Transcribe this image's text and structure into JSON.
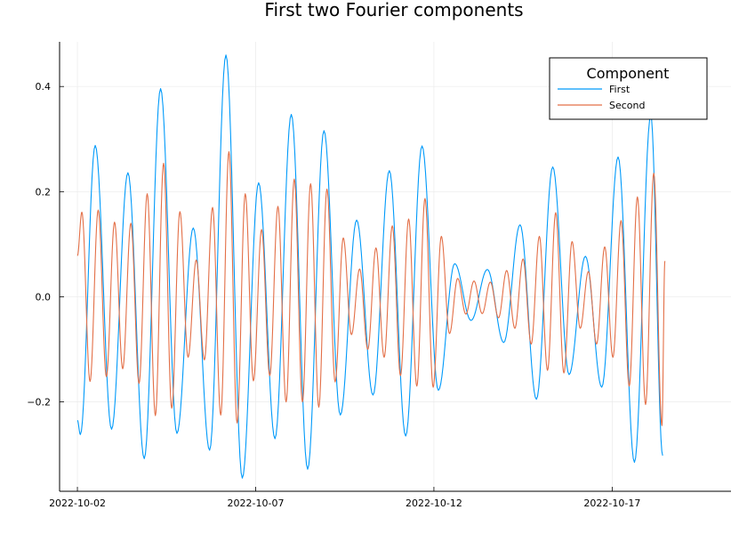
{
  "chart_data": {
    "type": "line",
    "title": "First two Fourier components",
    "xlabel": "",
    "ylabel": "",
    "x_start": "2022-10-02",
    "x_end": "2022-10-20",
    "xlim": [
      "2022-10-01T12:00",
      "2022-10-20T08:00"
    ],
    "ylim": [
      -0.37,
      0.485
    ],
    "x_ticks": [
      "2022-10-02",
      "2022-10-07",
      "2022-10-12",
      "2022-10-17"
    ],
    "y_ticks": [
      -0.2,
      0.0,
      0.2,
      0.4
    ],
    "y_tick_labels": [
      "−0.2",
      "0.0",
      "0.2",
      "0.4"
    ],
    "grid": true,
    "legend": {
      "title": "Component",
      "position": "top-right"
    },
    "series": [
      {
        "name": "First",
        "color": "#009AFA",
        "points": [
          [
            "2022-10-02T00:00",
            -0.235
          ],
          [
            "2022-10-02T02:00",
            -0.262
          ],
          [
            "2022-10-02T12:00",
            0.288
          ],
          [
            "2022-10-02T23:00",
            -0.252
          ],
          [
            "2022-10-03T10:00",
            0.236
          ],
          [
            "2022-10-03T21:00",
            -0.308
          ],
          [
            "2022-10-04T08:00",
            0.396
          ],
          [
            "2022-10-04T19:00",
            -0.26
          ],
          [
            "2022-10-05T06:00",
            0.131
          ],
          [
            "2022-10-05T17:00",
            -0.292
          ],
          [
            "2022-10-06T04:00",
            0.46
          ],
          [
            "2022-10-06T15:00",
            -0.345
          ],
          [
            "2022-10-07T02:00",
            0.217
          ],
          [
            "2022-10-07T13:00",
            -0.27
          ],
          [
            "2022-10-08T00:00",
            0.347
          ],
          [
            "2022-10-08T11:00",
            -0.328
          ],
          [
            "2022-10-08T22:00",
            0.316
          ],
          [
            "2022-10-09T09:00",
            -0.225
          ],
          [
            "2022-10-09T20:00",
            0.146
          ],
          [
            "2022-10-10T07:00",
            -0.187
          ],
          [
            "2022-10-10T18:00",
            0.24
          ],
          [
            "2022-10-11T05:00",
            -0.265
          ],
          [
            "2022-10-11T16:00",
            0.287
          ],
          [
            "2022-10-12T03:00",
            -0.178
          ],
          [
            "2022-10-12T14:00",
            0.063
          ],
          [
            "2022-10-13T01:00",
            -0.045
          ],
          [
            "2022-10-13T12:00",
            0.052
          ],
          [
            "2022-10-13T23:00",
            -0.087
          ],
          [
            "2022-10-14T10:00",
            0.137
          ],
          [
            "2022-10-14T21:00",
            -0.195
          ],
          [
            "2022-10-15T08:00",
            0.247
          ],
          [
            "2022-10-15T19:00",
            -0.148
          ],
          [
            "2022-10-16T06:00",
            0.077
          ],
          [
            "2022-10-16T17:00",
            -0.172
          ],
          [
            "2022-10-17T04:00",
            0.266
          ],
          [
            "2022-10-17T15:00",
            -0.315
          ],
          [
            "2022-10-18T02:00",
            0.345
          ],
          [
            "2022-10-18T10:00",
            -0.302
          ]
        ]
      },
      {
        "name": "Second",
        "color": "#E36F47",
        "points": [
          [
            "2022-10-02T00:00",
            0.078
          ],
          [
            "2022-10-02T03:00",
            0.161
          ],
          [
            "2022-10-02T08:30",
            -0.161
          ],
          [
            "2022-10-02T14:00",
            0.165
          ],
          [
            "2022-10-02T19:30",
            -0.152
          ],
          [
            "2022-10-03T01:00",
            0.142
          ],
          [
            "2022-10-03T06:30",
            -0.137
          ],
          [
            "2022-10-03T12:00",
            0.14
          ],
          [
            "2022-10-03T17:30",
            -0.165
          ],
          [
            "2022-10-03T23:00",
            0.196
          ],
          [
            "2022-10-04T04:30",
            -0.226
          ],
          [
            "2022-10-04T10:00",
            0.254
          ],
          [
            "2022-10-04T15:30",
            -0.212
          ],
          [
            "2022-10-04T21:00",
            0.162
          ],
          [
            "2022-10-05T02:30",
            -0.115
          ],
          [
            "2022-10-05T08:00",
            0.07
          ],
          [
            "2022-10-05T13:30",
            -0.12
          ],
          [
            "2022-10-05T19:00",
            0.17
          ],
          [
            "2022-10-06T00:30",
            -0.225
          ],
          [
            "2022-10-06T06:00",
            0.276
          ],
          [
            "2022-10-06T11:30",
            -0.24
          ],
          [
            "2022-10-06T17:00",
            0.196
          ],
          [
            "2022-10-06T22:30",
            -0.16
          ],
          [
            "2022-10-07T04:00",
            0.128
          ],
          [
            "2022-10-07T09:30",
            -0.15
          ],
          [
            "2022-10-07T15:00",
            0.172
          ],
          [
            "2022-10-07T20:30",
            -0.2
          ],
          [
            "2022-10-08T02:00",
            0.224
          ],
          [
            "2022-10-08T07:30",
            -0.2
          ],
          [
            "2022-10-08T13:00",
            0.215
          ],
          [
            "2022-10-08T18:30",
            -0.21
          ],
          [
            "2022-10-09T00:00",
            0.205
          ],
          [
            "2022-10-09T05:30",
            -0.162
          ],
          [
            "2022-10-09T11:00",
            0.112
          ],
          [
            "2022-10-09T16:30",
            -0.072
          ],
          [
            "2022-10-09T22:00",
            0.053
          ],
          [
            "2022-10-10T03:30",
            -0.1
          ],
          [
            "2022-10-10T09:00",
            0.093
          ],
          [
            "2022-10-10T14:30",
            -0.115
          ],
          [
            "2022-10-10T20:00",
            0.135
          ],
          [
            "2022-10-11T01:30",
            -0.15
          ],
          [
            "2022-10-11T07:00",
            0.148
          ],
          [
            "2022-10-11T12:30",
            -0.17
          ],
          [
            "2022-10-11T18:00",
            0.187
          ],
          [
            "2022-10-11T23:30",
            -0.172
          ],
          [
            "2022-10-12T05:00",
            0.115
          ],
          [
            "2022-10-12T10:30",
            -0.07
          ],
          [
            "2022-10-12T16:00",
            0.035
          ],
          [
            "2022-10-12T21:30",
            -0.033
          ],
          [
            "2022-10-13T03:00",
            0.03
          ],
          [
            "2022-10-13T08:30",
            -0.032
          ],
          [
            "2022-10-13T14:00",
            0.028
          ],
          [
            "2022-10-13T19:30",
            -0.04
          ],
          [
            "2022-10-14T01:00",
            0.05
          ],
          [
            "2022-10-14T06:30",
            -0.06
          ],
          [
            "2022-10-14T12:00",
            0.072
          ],
          [
            "2022-10-14T17:30",
            -0.09
          ],
          [
            "2022-10-14T23:00",
            0.115
          ],
          [
            "2022-10-15T04:30",
            -0.14
          ],
          [
            "2022-10-15T10:00",
            0.16
          ],
          [
            "2022-10-15T15:30",
            -0.145
          ],
          [
            "2022-10-15T21:00",
            0.105
          ],
          [
            "2022-10-16T02:30",
            -0.06
          ],
          [
            "2022-10-16T08:00",
            0.048
          ],
          [
            "2022-10-16T13:30",
            -0.09
          ],
          [
            "2022-10-16T19:00",
            0.095
          ],
          [
            "2022-10-17T00:30",
            -0.115
          ],
          [
            "2022-10-17T06:00",
            0.145
          ],
          [
            "2022-10-17T11:30",
            -0.17
          ],
          [
            "2022-10-17T17:00",
            0.19
          ],
          [
            "2022-10-17T22:30",
            -0.205
          ],
          [
            "2022-10-18T04:00",
            0.235
          ],
          [
            "2022-10-18T09:30",
            -0.245
          ],
          [
            "2022-10-18T11:30",
            0.068
          ]
        ]
      }
    ]
  }
}
